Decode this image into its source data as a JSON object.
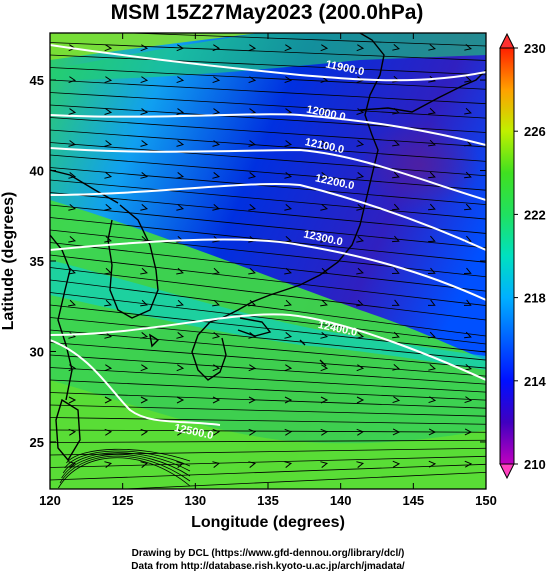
{
  "title": "MSM 15Z27May2023 (200.0hPa)",
  "x_axis": {
    "label": "Longitude (degrees)",
    "min": 120,
    "max": 150,
    "ticks": [
      "120",
      "125",
      "130",
      "135",
      "140",
      "145",
      "150"
    ]
  },
  "y_axis": {
    "label": "Latitude  (degrees)",
    "min": 22.4,
    "max": 47.6,
    "ticks": [
      "25",
      "30",
      "35",
      "40",
      "45"
    ]
  },
  "colorbar": {
    "min": 210,
    "max": 230,
    "ticks": [
      "210",
      "214",
      "218",
      "222",
      "226",
      "230"
    ]
  },
  "contours": [
    {
      "label": "11900.0",
      "lon": 140.3,
      "lat": 45.7
    },
    {
      "label": "12000.0",
      "lon": 139.0,
      "lat": 43.2
    },
    {
      "label": "12100.0",
      "lon": 138.9,
      "lat": 41.4
    },
    {
      "label": "12200.0",
      "lon": 139.6,
      "lat": 39.4
    },
    {
      "label": "12300.0",
      "lon": 138.8,
      "lat": 36.3
    },
    {
      "label": "12400.0",
      "lon": 139.8,
      "lat": 31.3
    },
    {
      "label": "12500.0",
      "lon": 129.9,
      "lat": 25.6
    }
  ],
  "colors": {
    "high": "#e0e000",
    "mid": "#20d040",
    "low": "#3050e0",
    "min": "#6020a0"
  },
  "credits": {
    "line1": "Drawing by DCL (https://www.gfd-dennou.org/library/dcl/)",
    "line2": "Data from http://database.rish.kyoto-u.ac.jp/arch/jmadata/"
  }
}
